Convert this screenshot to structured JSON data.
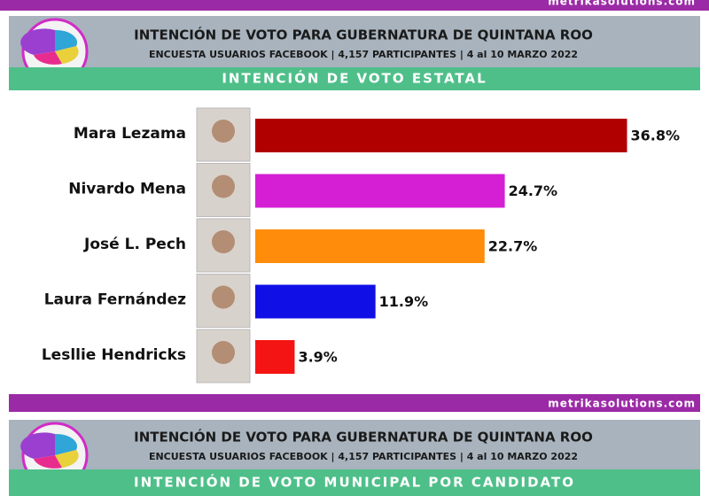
{
  "chart_data": {
    "type": "bar",
    "title": "INTENCIÓN DE VOTO PARA GUBERNATURA DE QUINTANA ROO",
    "subtitle": "ENCUESTA USUARIOS FACEBOOK | 4,157 PARTICIPANTES | 4 al 10 MARZO 2022",
    "section": "INTENCIÓN DE VOTO ESTATAL",
    "categories": [
      "Mara Lezama",
      "Nivardo Mena",
      "José L. Pech",
      "Laura Fernández",
      "Lesllie Hendricks"
    ],
    "values": [
      36.8,
      24.7,
      22.7,
      11.9,
      3.9
    ],
    "value_labels": [
      "36.8%",
      "24.7%",
      "22.7%",
      "11.9%",
      "3.9%"
    ],
    "colors": [
      "#b00000",
      "#d41fd4",
      "#ff8c0a",
      "#0f0fe6",
      "#f51414"
    ]
  },
  "website": "metrikasolutions.com",
  "next_panel": {
    "title": "INTENCIÓN DE VOTO PARA GUBERNATURA DE QUINTANA ROO",
    "subtitle": "ENCUESTA USUARIOS FACEBOOK | 4,157 PARTICIPANTES | 4 al 10 MARZO 2022",
    "section": "INTENCIÓN DE VOTO MUNICIPAL POR CANDIDATO"
  }
}
